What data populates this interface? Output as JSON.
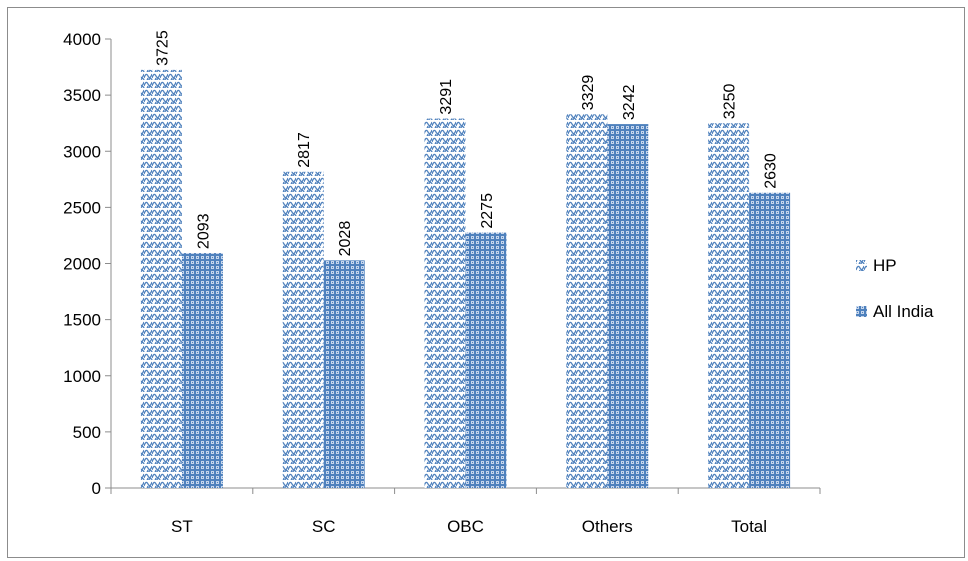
{
  "chart_data": {
    "type": "bar",
    "categories": [
      "ST",
      "SC",
      "OBC",
      "Others",
      "Total"
    ],
    "series": [
      {
        "name": "HP",
        "values": [
          3725,
          2817,
          3291,
          3329,
          3250
        ],
        "color": "#4f81bd",
        "pattern": "wave"
      },
      {
        "name": "All India",
        "values": [
          2093,
          2028,
          2275,
          3242,
          2630
        ],
        "color": "#4f81bd",
        "pattern": "grid"
      }
    ],
    "ylim": [
      0,
      4000
    ],
    "yticks": [
      0,
      500,
      1000,
      1500,
      2000,
      2500,
      3000,
      3500,
      4000
    ],
    "legend_position": "right",
    "grid": false
  }
}
